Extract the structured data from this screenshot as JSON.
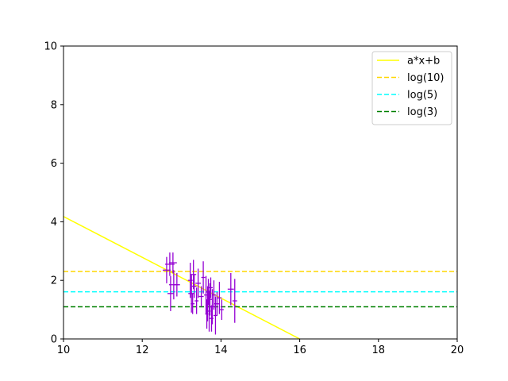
{
  "chart_data": {
    "type": "scatter",
    "title": "",
    "xlabel": "",
    "ylabel": "",
    "xlim": [
      10,
      20
    ],
    "ylim": [
      0,
      10
    ],
    "grid": false,
    "legend_position": "top-right",
    "x_ticks": [
      "10",
      "12",
      "14",
      "16",
      "18",
      "20"
    ],
    "y_ticks": [
      "0",
      "2",
      "4",
      "6",
      "8",
      "10"
    ],
    "lines": [
      {
        "name": "a*x+b",
        "kind": "linear",
        "x": [
          10,
          16
        ],
        "y": [
          4.18,
          0
        ],
        "color": "#ffff00",
        "style": "solid"
      },
      {
        "name": "log(10)",
        "kind": "hline",
        "y": 2.303,
        "color": "#ffd700",
        "style": "dashed"
      },
      {
        "name": "log(5)",
        "kind": "hline",
        "y": 1.609,
        "color": "#00ffff",
        "style": "dashed"
      },
      {
        "name": "log(3)",
        "kind": "hline",
        "y": 1.099,
        "color": "#008000",
        "style": "dashed"
      }
    ],
    "errorbar_series": {
      "color": "#9400d3",
      "points": [
        {
          "x": 12.62,
          "y": 2.35,
          "xerr": 0.1,
          "yerr": 0.45
        },
        {
          "x": 12.7,
          "y": 2.55,
          "xerr": 0.12,
          "yerr": 0.4
        },
        {
          "x": 12.72,
          "y": 1.55,
          "xerr": 0.08,
          "yerr": 0.6
        },
        {
          "x": 12.78,
          "y": 2.6,
          "xerr": 0.1,
          "yerr": 0.35
        },
        {
          "x": 12.8,
          "y": 1.85,
          "xerr": 0.12,
          "yerr": 0.5
        },
        {
          "x": 12.88,
          "y": 1.85,
          "xerr": 0.08,
          "yerr": 0.4
        },
        {
          "x": 13.22,
          "y": 2.0,
          "xerr": 0.06,
          "yerr": 0.6
        },
        {
          "x": 13.25,
          "y": 1.55,
          "xerr": 0.08,
          "yerr": 0.65
        },
        {
          "x": 13.28,
          "y": 1.2,
          "xerr": 0.05,
          "yerr": 0.35
        },
        {
          "x": 13.3,
          "y": 2.2,
          "xerr": 0.07,
          "yerr": 0.5
        },
        {
          "x": 13.32,
          "y": 1.8,
          "xerr": 0.06,
          "yerr": 0.4
        },
        {
          "x": 13.38,
          "y": 1.3,
          "xerr": 0.05,
          "yerr": 0.45
        },
        {
          "x": 13.42,
          "y": 1.9,
          "xerr": 0.07,
          "yerr": 0.5
        },
        {
          "x": 13.5,
          "y": 1.45,
          "xerr": 0.06,
          "yerr": 0.35
        },
        {
          "x": 13.55,
          "y": 2.1,
          "xerr": 0.05,
          "yerr": 0.55
        },
        {
          "x": 13.62,
          "y": 1.5,
          "xerr": 0.05,
          "yerr": 0.65
        },
        {
          "x": 13.64,
          "y": 0.85,
          "xerr": 0.04,
          "yerr": 0.5
        },
        {
          "x": 13.66,
          "y": 1.2,
          "xerr": 0.05,
          "yerr": 0.6
        },
        {
          "x": 13.68,
          "y": 1.6,
          "xerr": 0.05,
          "yerr": 0.45
        },
        {
          "x": 13.7,
          "y": 0.95,
          "xerr": 0.04,
          "yerr": 0.7
        },
        {
          "x": 13.72,
          "y": 1.35,
          "xerr": 0.06,
          "yerr": 0.55
        },
        {
          "x": 13.74,
          "y": 1.75,
          "xerr": 0.05,
          "yerr": 0.35
        },
        {
          "x": 13.76,
          "y": 0.7,
          "xerr": 0.05,
          "yerr": 0.45
        },
        {
          "x": 13.78,
          "y": 1.1,
          "xerr": 0.06,
          "yerr": 0.6
        },
        {
          "x": 13.82,
          "y": 1.5,
          "xerr": 0.05,
          "yerr": 0.5
        },
        {
          "x": 13.86,
          "y": 0.8,
          "xerr": 0.05,
          "yerr": 0.65
        },
        {
          "x": 13.9,
          "y": 1.2,
          "xerr": 0.07,
          "yerr": 0.4
        },
        {
          "x": 13.96,
          "y": 1.4,
          "xerr": 0.06,
          "yerr": 0.55
        },
        {
          "x": 14.02,
          "y": 1.0,
          "xerr": 0.05,
          "yerr": 0.35
        },
        {
          "x": 14.25,
          "y": 1.7,
          "xerr": 0.08,
          "yerr": 0.55
        },
        {
          "x": 14.35,
          "y": 1.3,
          "xerr": 0.06,
          "yerr": 0.75
        }
      ]
    }
  }
}
